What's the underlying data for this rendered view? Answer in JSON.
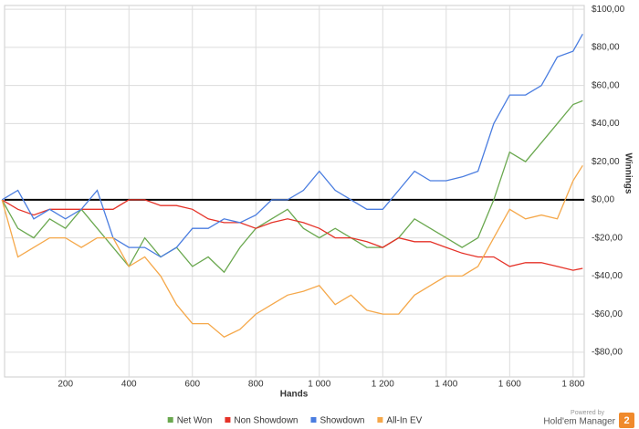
{
  "chart_data": {
    "type": "line",
    "x_label": "Hands",
    "y_label": "Winnings",
    "x": [
      0,
      50,
      100,
      150,
      200,
      250,
      300,
      350,
      400,
      450,
      500,
      550,
      600,
      650,
      700,
      750,
      800,
      850,
      900,
      950,
      1000,
      1050,
      1100,
      1150,
      1200,
      1250,
      1300,
      1350,
      1400,
      1450,
      1500,
      1550,
      1600,
      1650,
      1700,
      1750,
      1800,
      1830
    ],
    "series": [
      {
        "name": "Net Won",
        "color": "#6aa84f",
        "values": [
          0,
          -15,
          -20,
          -10,
          -15,
          -5,
          -15,
          -25,
          -35,
          -20,
          -30,
          -25,
          -35,
          -30,
          -38,
          -25,
          -15,
          -10,
          -5,
          -15,
          -20,
          -15,
          -20,
          -25,
          -25,
          -20,
          -10,
          -15,
          -20,
          -25,
          -20,
          0,
          25,
          20,
          30,
          40,
          50,
          52
        ]
      },
      {
        "name": "Non Showdown",
        "color": "#e53228",
        "values": [
          0,
          -5,
          -8,
          -5,
          -5,
          -5,
          -5,
          -5,
          0,
          0,
          -3,
          -3,
          -5,
          -10,
          -12,
          -12,
          -15,
          -12,
          -10,
          -12,
          -15,
          -20,
          -20,
          -22,
          -25,
          -20,
          -22,
          -22,
          -25,
          -28,
          -30,
          -30,
          -35,
          -33,
          -33,
          -35,
          -37,
          -36
        ]
      },
      {
        "name": "Showdown",
        "color": "#4a7de0",
        "values": [
          0,
          5,
          -10,
          -5,
          -10,
          -5,
          5,
          -20,
          -25,
          -25,
          -30,
          -25,
          -15,
          -15,
          -10,
          -12,
          -8,
          0,
          0,
          5,
          15,
          5,
          0,
          -5,
          -5,
          5,
          15,
          10,
          10,
          12,
          15,
          40,
          55,
          55,
          60,
          75,
          78,
          87
        ]
      },
      {
        "name": "All-In EV",
        "color": "#f5a84a",
        "values": [
          0,
          -30,
          -25,
          -20,
          -20,
          -25,
          -20,
          -20,
          -35,
          -30,
          -40,
          -55,
          -65,
          -65,
          -72,
          -68,
          -60,
          -55,
          -50,
          -48,
          -45,
          -55,
          -50,
          -58,
          -60,
          -60,
          -50,
          -45,
          -40,
          -40,
          -35,
          -20,
          -5,
          -10,
          -8,
          -10,
          10,
          18
        ]
      }
    ],
    "xlim": [
      8,
      1835
    ],
    "ylim": [
      -93,
      102
    ],
    "xticks": [
      200,
      400,
      600,
      800,
      {
        "value": 1000,
        "label": "1 000"
      },
      {
        "value": 1200,
        "label": "1 200"
      },
      {
        "value": 1400,
        "label": "1 400"
      },
      {
        "value": 1600,
        "label": "1 600"
      },
      {
        "value": 1800,
        "label": "1 800"
      }
    ],
    "yticks": [
      {
        "value": -80,
        "label": "-$80,00"
      },
      {
        "value": -60,
        "label": "-$60,00"
      },
      {
        "value": -40,
        "label": "-$40,00"
      },
      {
        "value": -20,
        "label": "-$20,00"
      },
      {
        "value": 0,
        "label": "$0,00"
      },
      {
        "value": 20,
        "label": "$20,00"
      },
      {
        "value": 40,
        "label": "$40,00"
      },
      {
        "value": 60,
        "label": "$60,00"
      },
      {
        "value": 80,
        "label": "$80,00"
      },
      {
        "value": 100,
        "label": "$100,00"
      }
    ],
    "grid": true,
    "legend": "bottom",
    "branding": {
      "powered_by": "Powered by",
      "product": "Hold'em Manager",
      "logo": "2"
    }
  }
}
